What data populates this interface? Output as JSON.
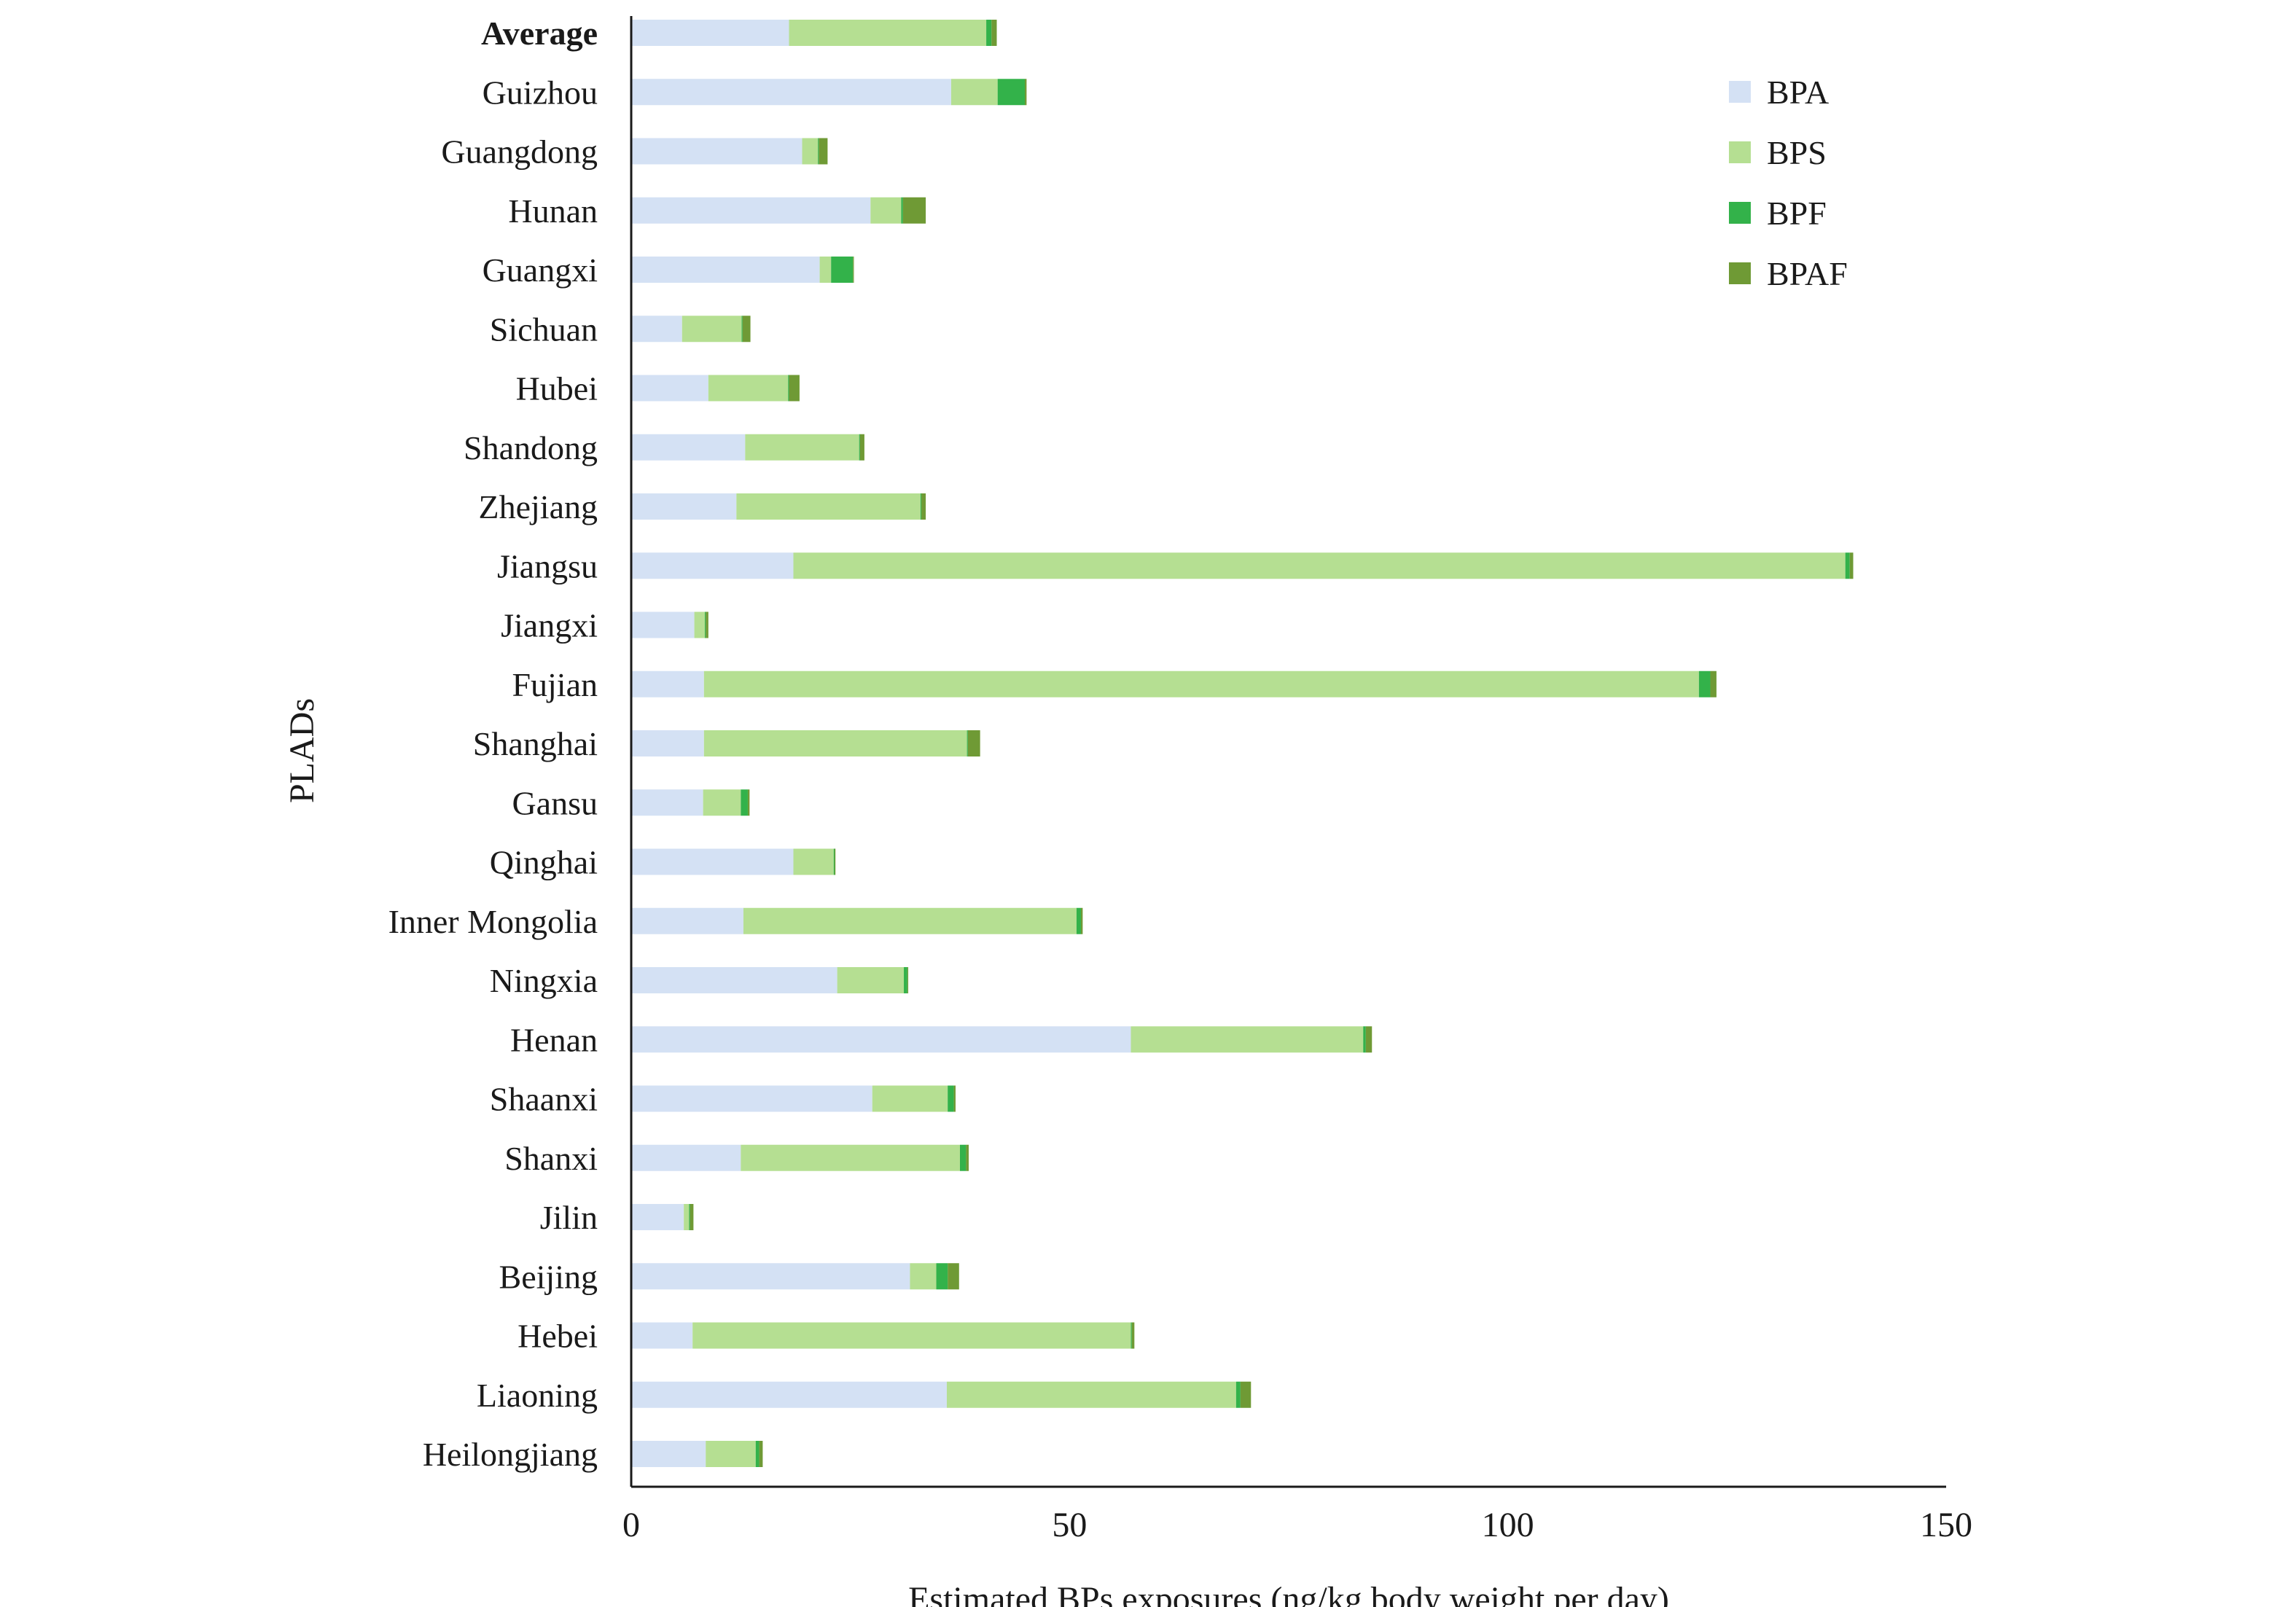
{
  "chart_data": {
    "type": "bar",
    "orientation": "horizontal",
    "stacked": true,
    "xlabel": "Estimated BPs exposures (ng/kg body weight per day)",
    "ylabel": "PLADs",
    "xlim": [
      0,
      150
    ],
    "xticks": [
      0,
      50,
      100,
      150
    ],
    "grid": false,
    "legend_position": "top-right",
    "categories": [
      "Average",
      "Guizhou",
      "Guangdong",
      "Hunan",
      "Guangxi",
      "Sichuan",
      "Hubei",
      "Shandong",
      "Zhejiang",
      "Jiangsu",
      "Jiangxi",
      "Fujian",
      "Shanghai",
      "Gansu",
      "Qinghai",
      "Inner Mongolia",
      "Ningxia",
      "Henan",
      "Shaanxi",
      "Shanxi",
      "Jilin",
      "Beijing",
      "Hebei",
      "Liaoning",
      "Heilongjiang"
    ],
    "bold_categories": [
      "Average"
    ],
    "series": [
      {
        "name": "BPA",
        "color": "#d4e1f4",
        "values": [
          18,
          36.5,
          19.5,
          27.3,
          21.5,
          5.8,
          8.8,
          13,
          12,
          18.5,
          7.2,
          8.3,
          8.3,
          8.2,
          18.5,
          12.8,
          23.5,
          57,
          27.5,
          12.5,
          6,
          31.8,
          7,
          36,
          8.5
        ]
      },
      {
        "name": "BPS",
        "color": "#b5df92",
        "values": [
          22.5,
          5.3,
          1.8,
          3.5,
          1.3,
          6.8,
          9.1,
          13,
          21,
          120,
          1.2,
          113.5,
          30,
          4.3,
          4.6,
          38,
          7.6,
          26.5,
          8.6,
          25,
          0.6,
          3,
          50,
          33,
          5.7
        ]
      },
      {
        "name": "BPF",
        "color": "#33b24a",
        "values": [
          0.6,
          3.1,
          0.1,
          0.2,
          2.5,
          0.1,
          0.1,
          0.1,
          0.1,
          0.5,
          0.1,
          1.3,
          0.1,
          0.8,
          0.1,
          0.5,
          0.4,
          0.3,
          0.7,
          0.7,
          0.1,
          1.3,
          0.1,
          0.5,
          0.4
        ]
      },
      {
        "name": "BPAF",
        "color": "#6f9a35",
        "values": [
          0.6,
          0.2,
          1.0,
          2.6,
          0.1,
          0.9,
          1.2,
          0.5,
          0.5,
          0.4,
          0.3,
          0.7,
          1.4,
          0.2,
          0.1,
          0.2,
          0.1,
          0.7,
          0.2,
          0.3,
          0.4,
          1.3,
          0.3,
          1.2,
          0.4
        ]
      }
    ]
  }
}
